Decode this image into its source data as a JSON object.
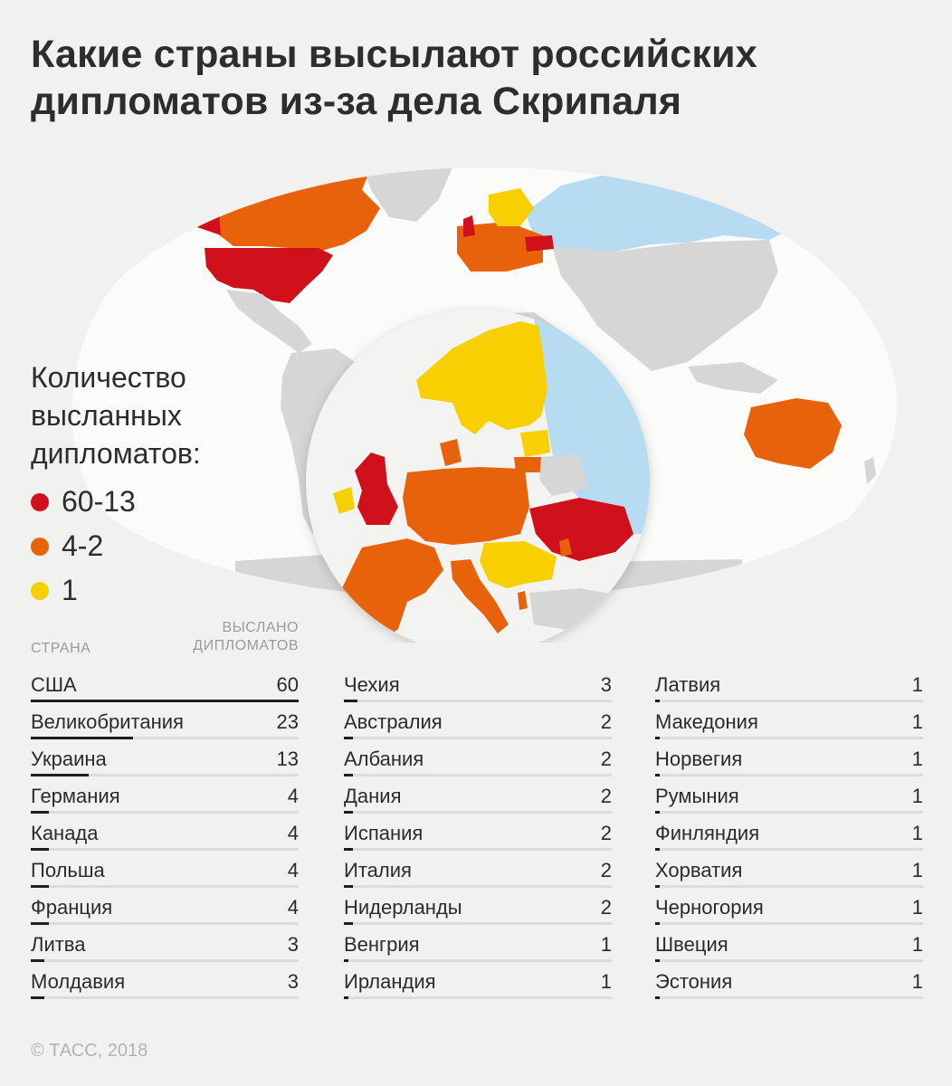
{
  "title": {
    "line1": "Какие страны высылают российских",
    "line2": "дипломатов из-за дела Скрипаля"
  },
  "legend": {
    "title": "Количество высланных дипломатов:",
    "items": [
      {
        "label": "60-13",
        "color": "#d0101b"
      },
      {
        "label": "4-2",
        "color": "#e8620c"
      },
      {
        "label": "1",
        "color": "#f8cf00"
      }
    ]
  },
  "colors": {
    "russia": "#b7dcf2",
    "land": "#d6d6d6",
    "ocean": "#f1f1ef",
    "bar": "#1f1f1f",
    "track": "#dcdcdc"
  },
  "table": {
    "header_country": "СТРАНА",
    "header_count_line1": "ВЫСЛАНО",
    "header_count_line2": "ДИПЛОМАТОВ",
    "max_value": 60,
    "columns": [
      [
        {
          "country": "США",
          "count": 60
        },
        {
          "country": "Великобритания",
          "count": 23
        },
        {
          "country": "Украина",
          "count": 13
        },
        {
          "country": "Германия",
          "count": 4
        },
        {
          "country": "Канада",
          "count": 4
        },
        {
          "country": "Польша",
          "count": 4
        },
        {
          "country": "Франция",
          "count": 4
        },
        {
          "country": "Литва",
          "count": 3
        },
        {
          "country": "Молдавия",
          "count": 3
        }
      ],
      [
        {
          "country": "Чехия",
          "count": 3
        },
        {
          "country": "Австралия",
          "count": 2
        },
        {
          "country": "Албания",
          "count": 2
        },
        {
          "country": "Дания",
          "count": 2
        },
        {
          "country": "Испания",
          "count": 2
        },
        {
          "country": "Италия",
          "count": 2
        },
        {
          "country": "Нидерланды",
          "count": 2
        },
        {
          "country": "Венгрия",
          "count": 1
        },
        {
          "country": "Ирландия",
          "count": 1
        }
      ],
      [
        {
          "country": "Латвия",
          "count": 1
        },
        {
          "country": "Македония",
          "count": 1
        },
        {
          "country": "Норвегия",
          "count": 1
        },
        {
          "country": "Румыния",
          "count": 1
        },
        {
          "country": "Финляндия",
          "count": 1
        },
        {
          "country": "Хорватия",
          "count": 1
        },
        {
          "country": "Черногория",
          "count": 1
        },
        {
          "country": "Швеция",
          "count": 1
        },
        {
          "country": "Эстония",
          "count": 1
        }
      ]
    ]
  },
  "copyright": "© ТАСС, 2018"
}
